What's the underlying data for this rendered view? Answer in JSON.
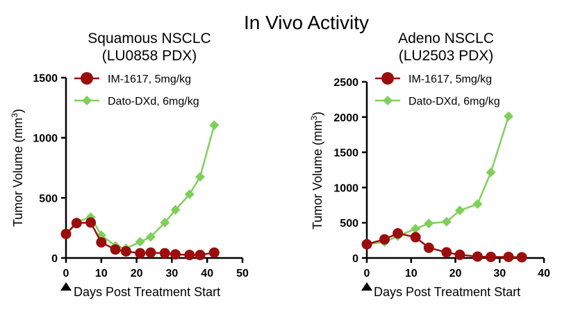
{
  "title": "In Vivo Activity",
  "colors": {
    "im": "#9b0e0e",
    "dato": "#7fd05a",
    "axis": "#000000"
  },
  "chart_data": [
    {
      "type": "line",
      "title_line1": "Squamous NSCLC",
      "title_line2": "(LU0858 PDX)",
      "xlabel": "Days Post Treatment Start",
      "ylabel_main": "Tumor Volume (mm",
      "ylabel_sup": "3",
      "ylabel_close": ")",
      "xlim": [
        0,
        50
      ],
      "ylim": [
        0,
        1500
      ],
      "xticks": [
        0,
        10,
        20,
        30,
        40,
        50
      ],
      "yticks": [
        0,
        500,
        1000,
        1500
      ],
      "grid": false,
      "legend": "top-left",
      "dosing_marker_day": 0,
      "series": [
        {
          "name": "IM-1617, 5mg/kg",
          "marker": "circle",
          "color_key": "im",
          "x": [
            0,
            3,
            7,
            10,
            14,
            17,
            21,
            24,
            28,
            31,
            35,
            38,
            42
          ],
          "y": [
            200,
            290,
            295,
            130,
            70,
            55,
            40,
            45,
            40,
            30,
            25,
            25,
            45
          ]
        },
        {
          "name": "Dato-DXd, 6mg/kg",
          "marker": "diamond",
          "color_key": "dato",
          "x": [
            0,
            3,
            7,
            10,
            14,
            17,
            21,
            24,
            28,
            31,
            35,
            38,
            42
          ],
          "y": [
            200,
            300,
            340,
            190,
            100,
            80,
            135,
            175,
            295,
            400,
            530,
            675,
            1105
          ]
        }
      ]
    },
    {
      "type": "line",
      "title_line1": "Adeno NSCLC",
      "title_line2": "(LU2503 PDX)",
      "xlabel": "Days Post Treatment Start",
      "ylabel_main": "Tumor Volume (mm",
      "ylabel_sup": "3",
      "ylabel_close": ")",
      "xlim": [
        0,
        40
      ],
      "ylim": [
        0,
        2500
      ],
      "xticks": [
        0,
        10,
        20,
        30,
        40
      ],
      "yticks": [
        0,
        500,
        1000,
        1500,
        2000,
        2500
      ],
      "grid": false,
      "legend": "top-left",
      "dosing_marker_day": 0,
      "series": [
        {
          "name": "IM-1617, 5mg/kg",
          "marker": "circle",
          "color_key": "im",
          "x": [
            0,
            4,
            7,
            11,
            14,
            18,
            21,
            25,
            28,
            32,
            35
          ],
          "y": [
            195,
            265,
            350,
            295,
            145,
            80,
            45,
            20,
            15,
            15,
            10
          ]
        },
        {
          "name": "Dato-DXd, 6mg/kg",
          "marker": "diamond",
          "color_key": "dato",
          "x": [
            0,
            4,
            7,
            11,
            14,
            18,
            21,
            25,
            28,
            32
          ],
          "y": [
            195,
            225,
            310,
            415,
            490,
            515,
            675,
            765,
            1215,
            2010
          ]
        }
      ]
    }
  ]
}
